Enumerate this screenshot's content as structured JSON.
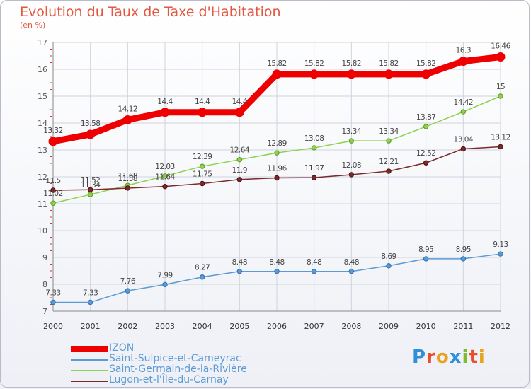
{
  "title": "Evolution du Taux de Taxe d'Habitation",
  "subtitle": "(en %)",
  "logo_text": "Proxiti",
  "chart_data": {
    "type": "line",
    "title": "Evolution du Taux de Taxe d'Habitation",
    "ylabel": "(en %)",
    "xlabel": "",
    "x": [
      "2000",
      "2001",
      "2002",
      "2003",
      "2004",
      "2005",
      "2006",
      "2007",
      "2008",
      "2009",
      "2010",
      "2011",
      "2012"
    ],
    "ylim": [
      7,
      17
    ],
    "yticks": [
      "7",
      "8",
      "9",
      "10",
      "11",
      "12",
      "13",
      "14",
      "15",
      "16",
      "17"
    ],
    "grid": true,
    "legend_position": "bottom-left",
    "series": [
      {
        "name": "IZON",
        "color": "#ee0000",
        "values": [
          13.32,
          13.58,
          14.12,
          14.4,
          14.4,
          14.4,
          15.82,
          15.82,
          15.82,
          15.82,
          15.82,
          16.3,
          16.46
        ],
        "labels": [
          "13.32",
          "13.58",
          "14.12",
          "14.4",
          "14.4",
          "14.4",
          "15.82",
          "15.82",
          "15.82",
          "15.82",
          "15.82",
          "16.3",
          "16.46"
        ]
      },
      {
        "name": "Saint-Sulpice-et-Cameyrac",
        "color": "#5b9bd5",
        "values": [
          7.33,
          7.33,
          7.76,
          7.99,
          8.27,
          8.48,
          8.48,
          8.48,
          8.48,
          8.69,
          8.95,
          8.95,
          9.13
        ],
        "labels": [
          "7.33",
          "7.33",
          "7.76",
          "7.99",
          "8.27",
          "8.48",
          "8.48",
          "8.48",
          "8.48",
          "8.69",
          "8.95",
          "8.95",
          "9.13"
        ]
      },
      {
        "name": "Saint-Germain-de-la-Rivière",
        "color": "#8fd14f",
        "values": [
          11.02,
          11.34,
          11.68,
          12.03,
          12.39,
          12.64,
          12.89,
          13.08,
          13.34,
          13.34,
          13.87,
          14.42,
          15
        ],
        "labels": [
          "11.02",
          "11.34",
          "11.68",
          "12.03",
          "12.39",
          "12.64",
          "12.89",
          "13.08",
          "13.34",
          "13.34",
          "13.87",
          "14.42",
          "15"
        ]
      },
      {
        "name": "Lugon-et-l'Île-du-Carnay",
        "color": "#7a2a2a",
        "values": [
          11.5,
          11.52,
          11.58,
          11.64,
          11.75,
          11.9,
          11.96,
          11.97,
          12.08,
          12.21,
          12.52,
          13.04,
          13.12
        ],
        "labels": [
          "11.5",
          "11.52",
          "11.58",
          "11.64",
          "11.75",
          "11.9",
          "11.96",
          "11.97",
          "12.08",
          "12.21",
          "12.52",
          "13.04",
          "13.12"
        ]
      }
    ]
  }
}
